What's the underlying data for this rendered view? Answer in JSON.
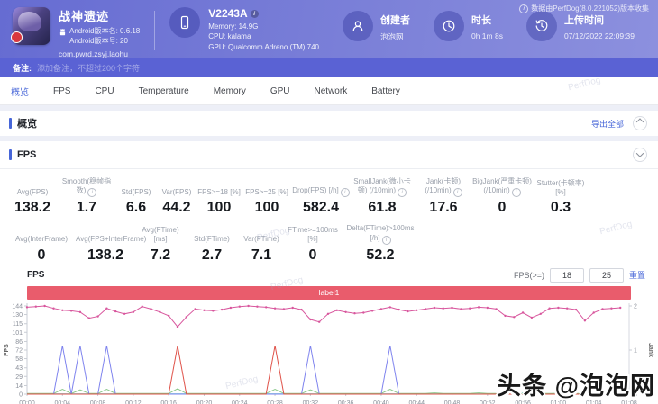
{
  "header": {
    "app": {
      "name": "战神遗迹",
      "android_version_name": "Android版本名: 0.6.18",
      "android_version_code": "Android版本号: 20",
      "package": "com.pwrd.zsyj.laohu"
    },
    "device": {
      "model": "V2243A",
      "memory": "Memory: 14.9G",
      "cpu": "CPU: kalama",
      "gpu": "GPU: Qualcomm Adreno (TM) 740"
    },
    "creator": {
      "label": "创建者",
      "value": "泡泡网"
    },
    "duration": {
      "label": "时长",
      "value": "0h 1m 8s"
    },
    "upload": {
      "label": "上传时间",
      "value": "07/12/2022 22:09:39"
    },
    "version_note": "数据由PerfDog(8.0.221052)版本收集"
  },
  "note_bar": {
    "label": "备注:",
    "placeholder": "添加备注，不超过200个字符"
  },
  "tabs": [
    "概览",
    "FPS",
    "CPU",
    "Temperature",
    "Memory",
    "GPU",
    "Network",
    "Battery"
  ],
  "active_tab": "概览",
  "overview": {
    "title": "概览",
    "export_label": "导出全部"
  },
  "fps_section": {
    "title": "FPS",
    "stats_row1": [
      {
        "key": "avg-fps",
        "label": "Avg(FPS)",
        "value": "138.2",
        "info": false
      },
      {
        "key": "smooth",
        "label": "Smooth(稳帧指数)",
        "value": "1.7",
        "info": true
      },
      {
        "key": "std-fps",
        "label": "Std(FPS)",
        "value": "6.6",
        "info": false
      },
      {
        "key": "var-fps",
        "label": "Var(FPS)",
        "value": "44.2",
        "info": false
      },
      {
        "key": "fps-ge-18",
        "label": "FPS>=18 [%]",
        "value": "100",
        "info": false
      },
      {
        "key": "fps-ge-25",
        "label": "FPS>=25 [%]",
        "value": "100",
        "info": false
      },
      {
        "key": "drop-fps",
        "label": "Drop(FPS) [/h]",
        "value": "582.4",
        "info": true
      },
      {
        "key": "smalljank",
        "label": "SmallJank(微小卡顿) (/10min)",
        "value": "61.8",
        "info": true
      },
      {
        "key": "jank",
        "label": "Jank(卡顿) (/10min)",
        "value": "17.6",
        "info": true
      },
      {
        "key": "bigjank",
        "label": "BigJank(严重卡顿) (/10min)",
        "value": "0",
        "info": true
      },
      {
        "key": "stutter",
        "label": "Stutter(卡顿率) [%]",
        "value": "0.3",
        "info": false
      }
    ],
    "stats_row2": [
      {
        "key": "avg-interframe",
        "label": "Avg(InterFrame)",
        "value": "0",
        "info": false
      },
      {
        "key": "avg-fps-interframe",
        "label": "Avg(FPS+InterFrame)",
        "value": "138.2",
        "info": false
      },
      {
        "key": "avg-ftime",
        "label": "Avg(FTime) [ms]",
        "value": "7.2",
        "info": false
      },
      {
        "key": "std-ftime",
        "label": "Std(FTime)",
        "value": "2.7",
        "info": false
      },
      {
        "key": "var-ftime",
        "label": "Var(FTime)",
        "value": "7.1",
        "info": false
      },
      {
        "key": "ftime-ge-100ms",
        "label": "FTime>=100ms [%]",
        "value": "0",
        "info": false
      },
      {
        "key": "delta-ftime",
        "label": "Delta(FTime)>100ms [/h]",
        "value": "52.2",
        "info": true
      }
    ]
  },
  "fps_controls": {
    "label": "FPS(>=)",
    "threshold1": "18",
    "threshold2": "25",
    "reset_label": "重置"
  },
  "chart_data": {
    "type": "line",
    "title": "FPS",
    "banner_label": "label1",
    "left_axis": {
      "label": "FPS",
      "max": 144,
      "ticks": [
        0,
        14,
        29,
        43,
        58,
        72,
        86,
        101,
        115,
        130,
        144
      ]
    },
    "right_axis": {
      "label": "Jank",
      "max": 2,
      "ticks": [
        0,
        1,
        2
      ]
    },
    "x_ticks": [
      "00:00",
      "00:04",
      "00:08",
      "00:12",
      "00:16",
      "00:20",
      "00:24",
      "00:28",
      "00:32",
      "00:36",
      "00:40",
      "00:44",
      "00:48",
      "00:52",
      "00:56",
      "01:00",
      "01:04",
      "01:08"
    ],
    "series": [
      {
        "name": "teal-baseline",
        "color": "#7fd4da",
        "markers": false,
        "baseline": 0.6,
        "spikes": [
          {
            "t": 55,
            "v": 2
          },
          {
            "t": 56,
            "v": 2.5
          },
          {
            "t": 57,
            "v": 2
          },
          {
            "t": 60,
            "v": 1.5
          }
        ]
      },
      {
        "name": "green-smalljank",
        "color": "#8bc88b",
        "markers": false,
        "baseline": 1,
        "spikes": [
          {
            "t": 4,
            "v": 8
          },
          {
            "t": 6,
            "v": 7
          },
          {
            "t": 9,
            "v": 8
          },
          {
            "t": 17,
            "v": 9
          },
          {
            "t": 28,
            "v": 8
          },
          {
            "t": 32,
            "v": 7
          },
          {
            "t": 41,
            "v": 8
          },
          {
            "t": 46,
            "v": 2
          },
          {
            "t": 51,
            "v": 2
          }
        ]
      },
      {
        "name": "blue-jank-spikes",
        "color": "#7e83ee",
        "markers": false,
        "baseline": 0,
        "spikes": [
          {
            "t": 4,
            "v": 79
          },
          {
            "t": 6,
            "v": 79
          },
          {
            "t": 9,
            "v": 79
          },
          {
            "t": 32,
            "v": 79
          },
          {
            "t": 41,
            "v": 79
          }
        ]
      },
      {
        "name": "red-jank-spikes",
        "color": "#df5148",
        "markers": false,
        "baseline": 0,
        "spikes": [
          {
            "t": 17,
            "v": 79
          },
          {
            "t": 28,
            "v": 79
          }
        ]
      },
      {
        "name": "fps",
        "color": "#d8569d",
        "markers": true,
        "values": [
          142,
          143,
          144,
          140,
          137,
          136,
          134,
          124,
          127,
          140,
          135,
          131,
          134,
          143,
          139,
          134,
          128,
          110,
          126,
          139,
          137,
          136,
          138,
          141,
          143,
          144,
          143,
          142,
          140,
          139,
          141,
          138,
          122,
          118,
          131,
          137,
          134,
          132,
          133,
          136,
          139,
          142,
          138,
          135,
          137,
          139,
          141,
          140,
          141,
          139,
          140,
          142,
          141,
          139,
          128,
          126,
          133,
          125,
          131,
          140,
          141,
          140,
          138,
          120,
          133,
          139,
          140,
          141
        ]
      }
    ]
  },
  "watermarks": {
    "bottom_right": "头条 @泡泡网",
    "background": "PerfDog"
  }
}
